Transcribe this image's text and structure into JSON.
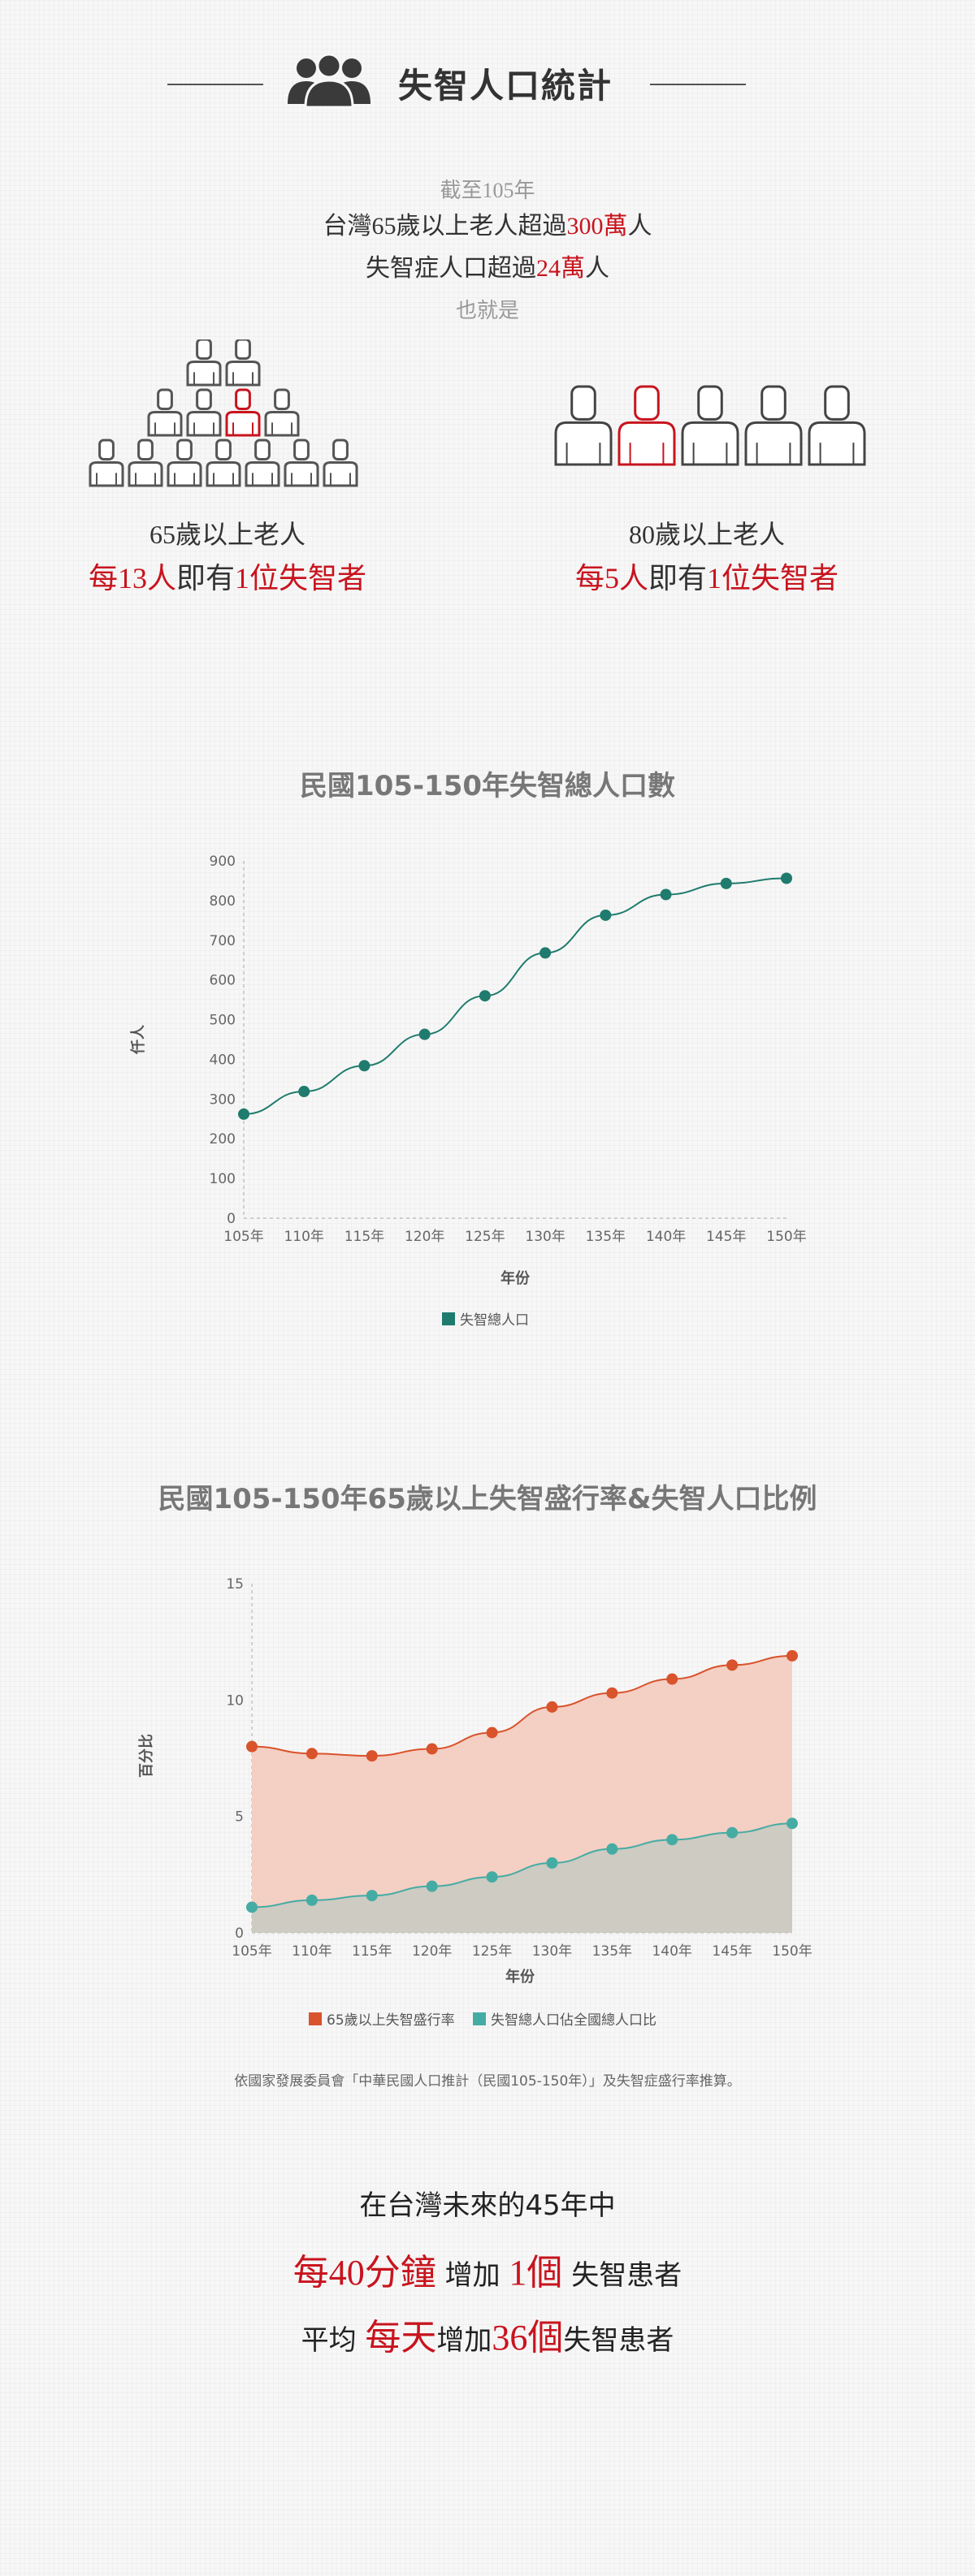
{
  "header": {
    "title": "失智人口統計",
    "icon": "people-group-icon"
  },
  "intro": {
    "line1": "截至105年",
    "line2_pre": "台灣65歲以上老人超過",
    "line2_num": "300萬",
    "line2_post": "人",
    "line3_pre": "失智症人口超過",
    "line3_num": "24萬",
    "line3_post": "人",
    "line4": "也就是"
  },
  "ratio_65": {
    "label": "65歲以上老人",
    "pre": "每13人",
    "mid": "即有",
    "post": "1位失智者",
    "total": 13,
    "highlighted": 1
  },
  "ratio_80": {
    "label": "80歲以上老人",
    "pre": "每5人",
    "mid": "即有",
    "post": "1位失智者",
    "total": 5,
    "highlighted": 1
  },
  "colors": {
    "accent_red": "#c8141e",
    "teal_dark": "#1f7b6d",
    "orange": "#d9532c",
    "teal_light": "#45aca4",
    "area_orange": "#f4cfc3",
    "area_gray": "#cdcbc2"
  },
  "chart_data": [
    {
      "type": "line",
      "title": "民國105-150年失智總人口數",
      "xlabel": "年份",
      "ylabel": "仟人",
      "categories": [
        "105年",
        "110年",
        "115年",
        "120年",
        "125年",
        "130年",
        "135年",
        "140年",
        "145年",
        "150年"
      ],
      "series": [
        {
          "name": "失智總人口",
          "values": [
            262,
            319,
            384,
            463,
            560,
            668,
            763,
            815,
            843,
            856
          ]
        }
      ],
      "ylim": [
        0,
        900
      ],
      "yticks": [
        0,
        100,
        200,
        300,
        400,
        500,
        600,
        700,
        800,
        900
      ],
      "grid": false,
      "legend": "bottom"
    },
    {
      "type": "area",
      "title": "民國105-150年65歲以上失智盛行率&失智人口比例",
      "xlabel": "年份",
      "ylabel": "百分比",
      "categories": [
        "105年",
        "110年",
        "115年",
        "120年",
        "125年",
        "130年",
        "135年",
        "140年",
        "145年",
        "150年"
      ],
      "series": [
        {
          "name": "65歲以上失智盛行率",
          "values": [
            8.0,
            7.7,
            7.6,
            7.9,
            8.6,
            9.7,
            10.3,
            10.9,
            11.5,
            11.9
          ]
        },
        {
          "name": "失智總人口佔全國總人口比",
          "values": [
            1.1,
            1.4,
            1.6,
            2.0,
            2.4,
            3.0,
            3.6,
            4.0,
            4.3,
            4.7
          ]
        }
      ],
      "ylim": [
        0,
        15
      ],
      "yticks": [
        0,
        5,
        10,
        15
      ],
      "grid": false,
      "legend": "bottom"
    }
  ],
  "footnote": "依國家發展委員會「中華民國人口推計（民國105-150年）」及失智症盛行率推算。",
  "ending": {
    "line1": "在台灣未來的45年中",
    "l2_a": "每40分鐘",
    "l2_b": " 增加 ",
    "l2_c": "1個",
    "l2_d": " 失智患者",
    "l3_a": "平均 ",
    "l3_b": "每天",
    "l3_c": "增加",
    "l3_d": "36個",
    "l3_e": "失智患者"
  }
}
